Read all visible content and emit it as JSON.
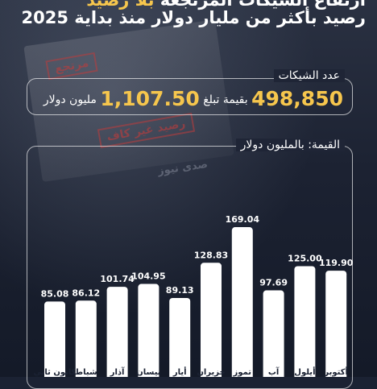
{
  "headline": {
    "line1_prefix": "ارتفاع الشيكات المرتجعة",
    "line1_highlight": "بلا رصيد",
    "line2": "رصيد بأكثر من مليار دولار منذ بداية 2025"
  },
  "summary": {
    "label": "عدد الشيكات",
    "count": "498,850",
    "value_prefix": "بقيمة تبلغ",
    "value": "1,107.50",
    "value_unit": "مليون دولار"
  },
  "stamps": {
    "returned": "مرتجع",
    "no_balance": "رصيد غير كاف"
  },
  "logo": {
    "text": "صدى نيوز"
  },
  "colors": {
    "accent": "#f6c64d",
    "bar": "#ffffff",
    "background": "#1b2233"
  },
  "chart_data": {
    "type": "bar",
    "title": "القيمة: بالمليون دولار",
    "categories": [
      "كانون ثاني",
      "شباط",
      "آذار",
      "نيسان",
      "أيار",
      "حزيران",
      "تموز",
      "آب",
      "أيلول",
      "أكتوبر"
    ],
    "values": [
      85.08,
      86.12,
      101.74,
      104.95,
      89.13,
      128.83,
      169.04,
      97.69,
      125.0,
      119.9
    ],
    "value_labels": [
      "85.08",
      "86.12",
      "101.74",
      "104.95",
      "89.13",
      "128.83",
      "169.04",
      "97.69",
      "125.00",
      "119.90"
    ],
    "ylim": [
      0,
      180
    ],
    "grid": false,
    "legend": "none"
  }
}
